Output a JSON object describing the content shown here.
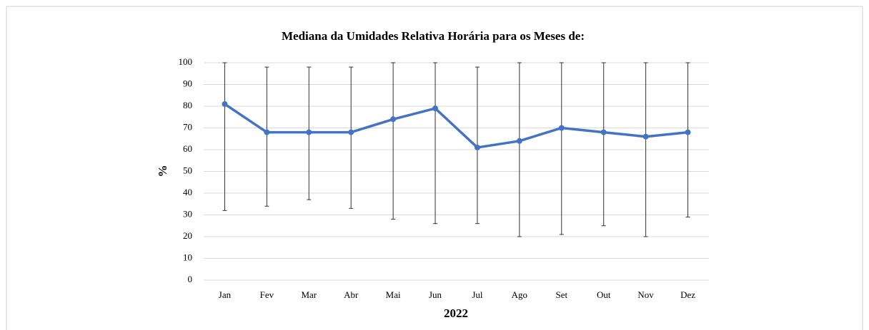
{
  "chart_data": {
    "type": "line",
    "title": "Mediana da Umidades Relativa Horária para os Meses de:",
    "xlabel": "2022",
    "ylabel": "%",
    "categories": [
      "Jan",
      "Fev",
      "Mar",
      "Abr",
      "Mai",
      "Jun",
      "Jul",
      "Ago",
      "Set",
      "Out",
      "Nov",
      "Dez"
    ],
    "values": [
      81,
      68,
      68,
      68,
      74,
      79,
      61,
      64,
      70,
      68,
      66,
      68
    ],
    "min": [
      32,
      34,
      37,
      33,
      28,
      26,
      26,
      20,
      21,
      25,
      20,
      29
    ],
    "max": [
      100,
      98,
      98,
      98,
      100,
      100,
      98,
      100,
      100,
      100,
      100,
      100
    ],
    "color": "#4472c4",
    "ylim": [
      0,
      100
    ],
    "yticks": [
      0,
      10,
      20,
      30,
      40,
      50,
      60,
      70,
      80,
      90,
      100
    ],
    "grid": true
  }
}
